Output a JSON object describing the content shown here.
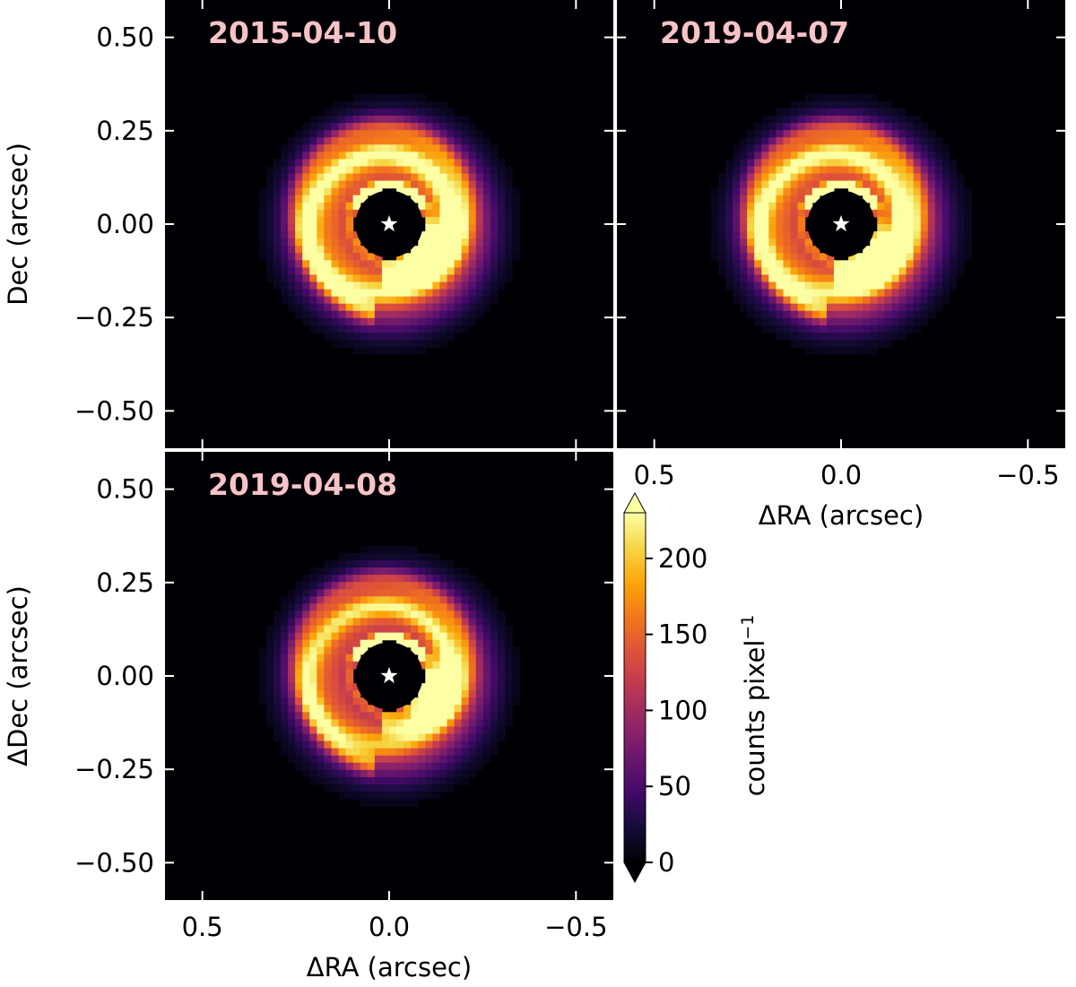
{
  "figure": {
    "colormap": "inferno",
    "star_color": "#ffffff",
    "date_color": "#f8c3c8"
  },
  "chart_data": [
    {
      "type": "heatmap",
      "title": "2015-04-10",
      "xlabel": "",
      "ylabel": "Dec (arcsec)",
      "xlim": [
        0.6,
        -0.6
      ],
      "ylim": [
        -0.6,
        0.6
      ],
      "xticks": [
        0.5,
        0.0,
        -0.5
      ],
      "xticklabels": [],
      "yticks": [
        0.5,
        0.25,
        0.0,
        -0.25,
        -0.5
      ],
      "yticklabels": [
        "0.50",
        "0.25",
        "0.00",
        "−0.25",
        "−0.50"
      ],
      "star": [
        0,
        0
      ],
      "mask_radius": 0.09,
      "bright_arc_pa_deg": 235,
      "peak_counts": 230
    },
    {
      "type": "heatmap",
      "title": "2019-04-07",
      "xlabel": "ΔRA (arcsec)",
      "ylabel": "",
      "xlim": [
        0.6,
        -0.6
      ],
      "ylim": [
        -0.6,
        0.6
      ],
      "xticks": [
        0.5,
        0.0,
        -0.5
      ],
      "xticklabels": [
        "0.5",
        "0.0",
        "−0.5"
      ],
      "yticks": [
        0.5,
        0.25,
        0.0,
        -0.25,
        -0.5
      ],
      "yticklabels": [],
      "star": [
        0,
        0
      ],
      "mask_radius": 0.09,
      "bright_arc_pa_deg": 225,
      "peak_counts": 225
    },
    {
      "type": "heatmap",
      "title": "2019-04-08",
      "xlabel": "ΔRA (arcsec)",
      "ylabel": "ΔDec (arcsec)",
      "xlim": [
        0.6,
        -0.6
      ],
      "ylim": [
        -0.6,
        0.6
      ],
      "xticks": [
        0.5,
        0.0,
        -0.5
      ],
      "xticklabels": [
        "0.5",
        "0.0",
        "−0.5"
      ],
      "yticks": [
        0.5,
        0.25,
        0.0,
        -0.25,
        -0.5
      ],
      "yticklabels": [
        "0.50",
        "0.25",
        "0.00",
        "−0.25",
        "−0.50"
      ],
      "star": [
        0,
        0
      ],
      "mask_radius": 0.09,
      "bright_arc_pa_deg": 250,
      "peak_counts": 205
    }
  ],
  "colorbar": {
    "label": "counts pixel",
    "label_sup": "−1",
    "min": 0,
    "max": 230,
    "ticks": [
      0,
      50,
      100,
      150,
      200
    ],
    "ticklabels": [
      "0",
      "50",
      "100",
      "150",
      "200"
    ],
    "extend": "both"
  }
}
